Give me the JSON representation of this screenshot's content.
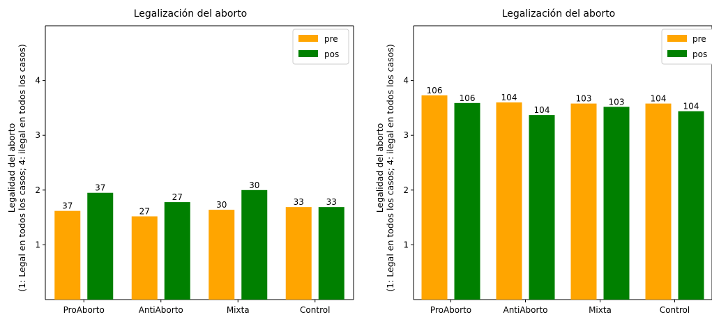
{
  "colors": {
    "pre": "#ffa500",
    "pos": "#008000"
  },
  "chart_data": [
    {
      "type": "bar",
      "title": "Legalización del aborto",
      "xlabel": "",
      "ylabel_line1": "Legalidad del aborto",
      "ylabel_line2": "(1: Legal en todos los casos; 4: ilegal en todos los casos)",
      "ylim": [
        0,
        5
      ],
      "yticks": [
        "1",
        "2",
        "3",
        "4"
      ],
      "categories": [
        "ProAborto",
        "AntiAborto",
        "Mixta",
        "Control"
      ],
      "legend_position": "top-right",
      "series": [
        {
          "name": "pre",
          "values": [
            1.62,
            1.52,
            1.64,
            1.69
          ],
          "labels": [
            "37",
            "27",
            "30",
            "33"
          ]
        },
        {
          "name": "pos",
          "values": [
            1.95,
            1.78,
            2.0,
            1.69
          ],
          "labels": [
            "37",
            "27",
            "30",
            "33"
          ]
        }
      ]
    },
    {
      "type": "bar",
      "title": "Legalización del aborto",
      "xlabel": "",
      "ylabel_line1": "Legalidad del aborto",
      "ylabel_line2": "(1: Legal en todos los casos; 4: ilegal en todos los casos)",
      "ylim": [
        0,
        5
      ],
      "yticks": [
        "1",
        "2",
        "3",
        "4"
      ],
      "categories": [
        "ProAborto",
        "AntiAborto",
        "Mixta",
        "Control"
      ],
      "legend_position": "top-right",
      "series": [
        {
          "name": "pre",
          "values": [
            3.73,
            3.6,
            3.58,
            3.58
          ],
          "labels": [
            "106",
            "104",
            "103",
            "104"
          ]
        },
        {
          "name": "pos",
          "values": [
            3.59,
            3.37,
            3.52,
            3.44
          ],
          "labels": [
            "106",
            "104",
            "103",
            "104"
          ]
        }
      ]
    }
  ]
}
